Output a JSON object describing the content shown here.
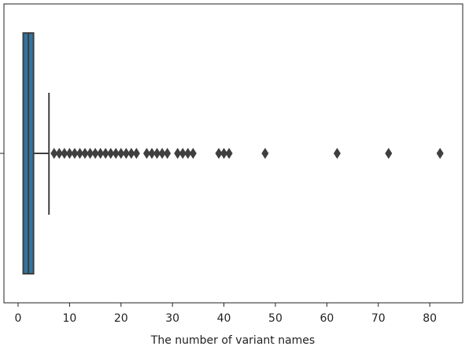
{
  "chart_data": {
    "type": "box",
    "orientation": "horizontal",
    "xlabel": "The number of variant names",
    "whisker_low": 1,
    "q1": 1,
    "median": 2,
    "q3": 3,
    "whisker_high": 6,
    "outliers": [
      7,
      8,
      9,
      10,
      11,
      12,
      13,
      14,
      15,
      16,
      17,
      18,
      19,
      20,
      21,
      22,
      23,
      25,
      26,
      27,
      28,
      29,
      31,
      32,
      33,
      34,
      39,
      40,
      41,
      48,
      62,
      72,
      82
    ],
    "color": "#3274a1",
    "edge_color": "#3f3f3f",
    "xlim": [
      -2.75,
      86.4
    ],
    "xticks": [
      0,
      10,
      20,
      30,
      40,
      50,
      60,
      70,
      80
    ]
  }
}
